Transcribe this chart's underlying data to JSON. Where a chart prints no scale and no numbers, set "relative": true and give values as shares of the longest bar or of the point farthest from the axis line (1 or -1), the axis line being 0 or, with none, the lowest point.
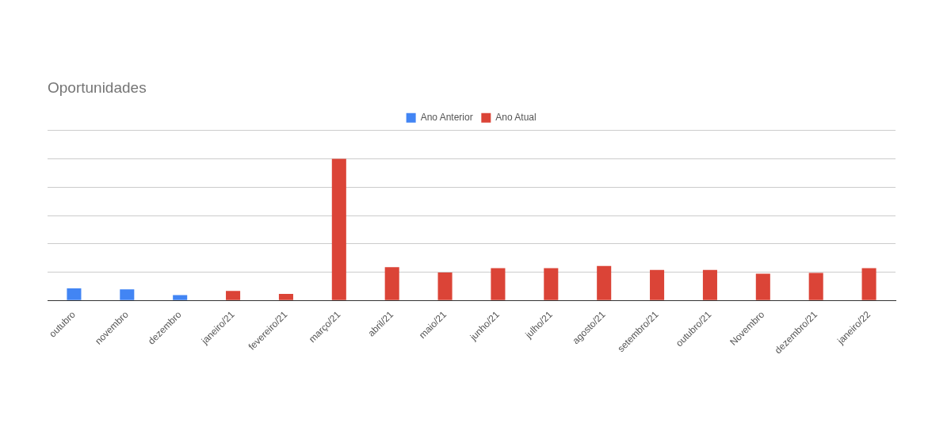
{
  "chart_data": {
    "type": "bar",
    "title": "Oportunidades",
    "relative": true,
    "grid": "y",
    "legend": "top",
    "categories": [
      "outubro",
      "novembro",
      "dezembro",
      "janeiro/21",
      "fevereiro/21",
      "março/21",
      "abril/21",
      "maio/21",
      "junho/21",
      "julho/21",
      "agosto/21",
      "setembro/21",
      "outubro/21",
      "Novembro",
      "dezembro/21",
      "janeiro/22"
    ],
    "series": [
      {
        "name": "Ano Anterior",
        "color": "#4285f4",
        "values": [
          0.085,
          0.078,
          0.038,
          null,
          null,
          null,
          null,
          null,
          null,
          null,
          null,
          null,
          null,
          null,
          null,
          null
        ]
      },
      {
        "name": "Ano Atual",
        "color": "#db4437",
        "values": [
          null,
          null,
          null,
          0.068,
          0.046,
          1,
          0.235,
          0.197,
          0.228,
          0.228,
          0.243,
          0.216,
          0.216,
          0.189,
          0.194,
          0.228
        ]
      }
    ]
  }
}
